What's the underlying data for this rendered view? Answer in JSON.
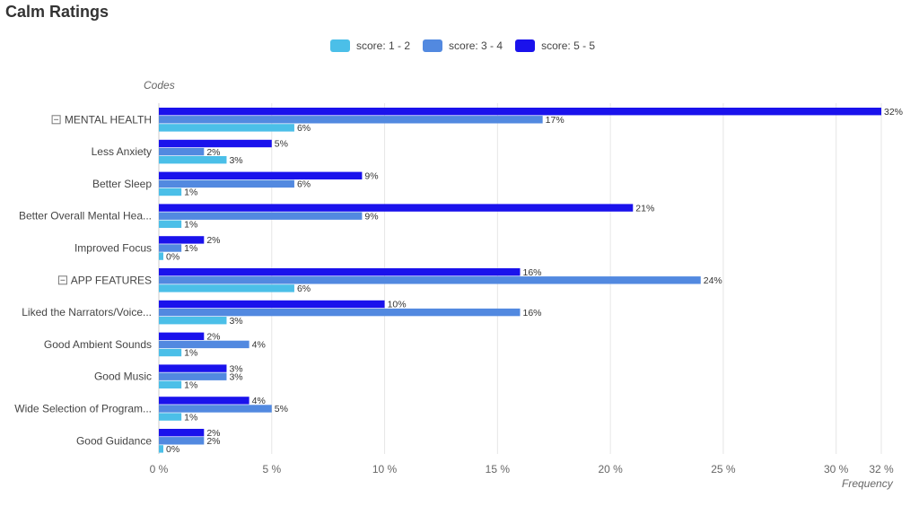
{
  "title": "Calm Ratings",
  "legend": [
    {
      "label": "score: 1 - 2",
      "color": "#4bbfe8"
    },
    {
      "label": "score: 3 - 4",
      "color": "#5289e0"
    },
    {
      "label": "score: 5 - 5",
      "color": "#1a12ec"
    }
  ],
  "chart_data": {
    "type": "bar",
    "orientation": "horizontal",
    "title": "Calm Ratings",
    "ylabel": "Codes",
    "xlabel": "Frequency",
    "xlim": [
      0,
      32
    ],
    "x_ticks": [
      "0 %",
      "5 %",
      "10 %",
      "15 %",
      "20 %",
      "25 %",
      "30 %",
      "32 %"
    ],
    "x_tick_values": [
      0,
      5,
      10,
      15,
      20,
      25,
      30,
      32
    ],
    "grid": true,
    "legend_position": "top",
    "categories": [
      {
        "label": "MENTAL HEALTH",
        "group_header": true
      },
      {
        "label": "Less Anxiety"
      },
      {
        "label": "Better Sleep"
      },
      {
        "label": "Better Overall Mental Hea..."
      },
      {
        "label": "Improved Focus"
      },
      {
        "label": "APP FEATURES",
        "group_header": true
      },
      {
        "label": "Liked the Narrators/Voice..."
      },
      {
        "label": "Good Ambient Sounds"
      },
      {
        "label": "Good Music"
      },
      {
        "label": "Wide Selection of Program..."
      },
      {
        "label": "Good Guidance"
      }
    ],
    "series": [
      {
        "name": "score: 5 - 5",
        "color": "#1a12ec",
        "values": [
          32,
          5,
          9,
          21,
          2,
          16,
          10,
          2,
          3,
          4,
          2
        ],
        "labels": [
          "32%",
          "5%",
          "9%",
          "21%",
          "2%",
          "16%",
          "10%",
          "2%",
          "3%",
          "4%",
          "2%"
        ]
      },
      {
        "name": "score: 3 - 4",
        "color": "#5289e0",
        "values": [
          17,
          2,
          6,
          9,
          1,
          24,
          16,
          4,
          3,
          5,
          2
        ],
        "labels": [
          "17%",
          "2%",
          "6%",
          "9%",
          "1%",
          "24%",
          "16%",
          "4%",
          "3%",
          "5%",
          "2%"
        ]
      },
      {
        "name": "score: 1 - 2",
        "color": "#4bbfe8",
        "values": [
          6,
          3,
          1,
          1,
          0,
          6,
          3,
          1,
          1,
          1,
          0
        ],
        "labels": [
          "6%",
          "3%",
          "1%",
          "1%",
          "0%",
          "6%",
          "3%",
          "1%",
          "1%",
          "1%",
          "0%"
        ]
      }
    ]
  }
}
